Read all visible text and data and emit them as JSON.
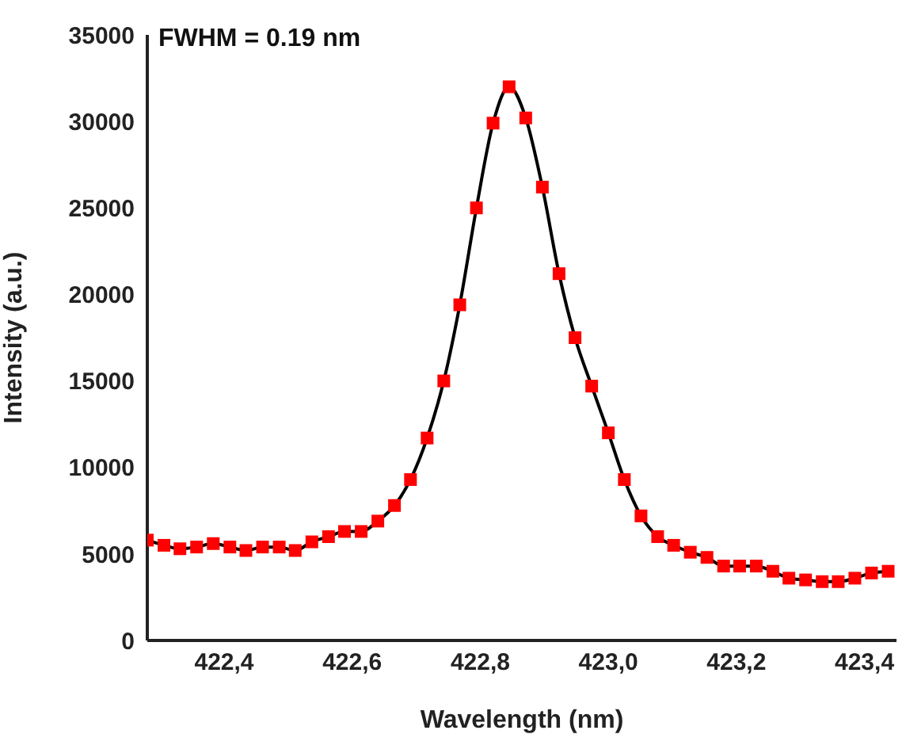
{
  "chart_data": {
    "type": "line",
    "xlabel": "Wavelength (nm)",
    "ylabel": "Intensity (a.u.)",
    "annotations": [
      "FWHM = 0.19 nm"
    ],
    "x": [
      422.28,
      422.306,
      422.331,
      422.357,
      422.383,
      422.409,
      422.434,
      422.46,
      422.486,
      422.511,
      422.537,
      422.563,
      422.588,
      422.614,
      422.64,
      422.666,
      422.691,
      422.717,
      422.743,
      422.768,
      422.794,
      422.82,
      422.845,
      422.871,
      422.897,
      422.923,
      422.948,
      422.974,
      423.0,
      423.025,
      423.051,
      423.077,
      423.102,
      423.128,
      423.154,
      423.18,
      423.205,
      423.231,
      423.257,
      423.282,
      423.308,
      423.334,
      423.359,
      423.385,
      423.411,
      423.437
    ],
    "series": [
      {
        "color": "#ff0000",
        "values": [
          5800,
          5500,
          5300,
          5400,
          5600,
          5400,
          5200,
          5400,
          5400,
          5200,
          5700,
          6000,
          6300,
          6300,
          6900,
          7800,
          9300,
          11700,
          15000,
          19400,
          25000,
          29900,
          32000,
          30200,
          26200,
          21200,
          17500,
          14700,
          12000,
          9300,
          7200,
          6000,
          5500,
          5100,
          4800,
          4300,
          4300,
          4300,
          4000,
          3600,
          3500,
          3400,
          3400,
          3600,
          3900,
          4000
        ]
      }
    ],
    "xlim": [
      422.28,
      423.45
    ],
    "xticks": [
      {
        "value": 422.4,
        "label": "422,4"
      },
      {
        "value": 422.6,
        "label": "422,6"
      },
      {
        "value": 422.8,
        "label": "422,8"
      },
      {
        "value": 423.0,
        "label": "423,0"
      },
      {
        "value": 423.2,
        "label": "423,2"
      },
      {
        "value": 423.4,
        "label": "423,4"
      }
    ],
    "ylim": [
      0,
      35000
    ],
    "yticks": [
      0,
      5000,
      10000,
      15000,
      20000,
      25000,
      30000,
      35000
    ],
    "grid": false,
    "legend": false,
    "marker": "square",
    "line_style": "solid"
  }
}
